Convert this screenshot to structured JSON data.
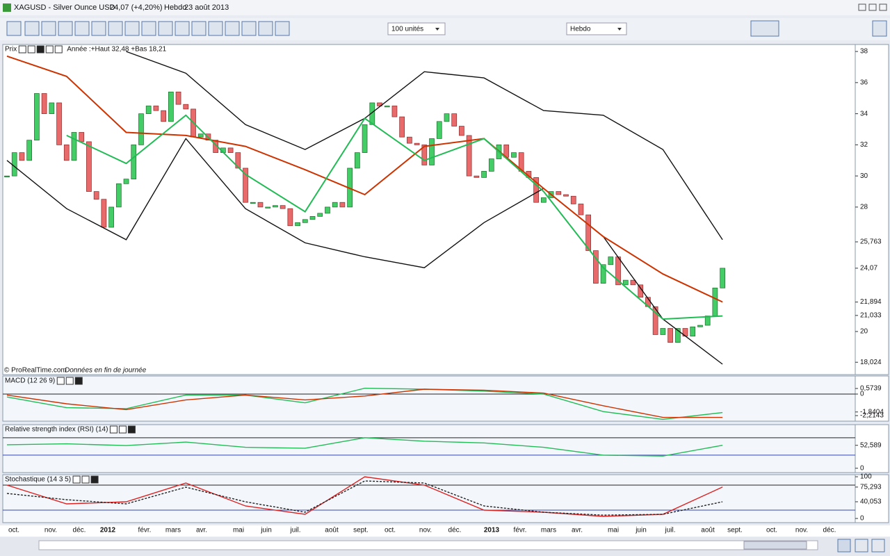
{
  "window": {
    "symbol": "XAGUSD - Silver Ounce USD",
    "quote": "24,07 (+4,20%)",
    "period": "Hebdo",
    "date": "23 août 2013"
  },
  "toolbar": {
    "units": "100 unités",
    "timeframe": "Hebdo"
  },
  "footer": {
    "copyright": "© ProRealTime.com",
    "note": "Données en fin de journée"
  },
  "x_axis": {
    "labels": [
      "oct.",
      "nov.",
      "déc.",
      "2012",
      "févr.",
      "mars",
      "avr.",
      "mai",
      "juin",
      "juil.",
      "août",
      "sept.",
      "oct.",
      "nov.",
      "déc.",
      "2013",
      "févr.",
      "mars",
      "avr.",
      "mai",
      "juin",
      "juil.",
      "août",
      "sept.",
      "oct.",
      "nov.",
      "déc."
    ]
  },
  "chart_data": [
    {
      "type": "candlestick",
      "title": "Prix",
      "subtitle": "Année :+Haut 32,48 +Bas 18,21",
      "closes": [
        30.0,
        31.5,
        31.0,
        32.3,
        35.3,
        34.0,
        34.7,
        32.0,
        31.0,
        32.8,
        32.2,
        29.0,
        28.5,
        26.7,
        28.0,
        29.5,
        29.8,
        32.0,
        34.0,
        34.5,
        34.2,
        33.5,
        35.4,
        34.6,
        34.3,
        32.5,
        32.7,
        32.3,
        31.5,
        31.8,
        31.5,
        30.5,
        28.3,
        28.3,
        28.0,
        28.0,
        28.1,
        27.9,
        26.8,
        27.0,
        27.2,
        27.4,
        27.6,
        28.0,
        28.3,
        28.0,
        30.5,
        31.5,
        33.3,
        34.7,
        34.5,
        34.5,
        33.8,
        32.5,
        32.1,
        32.0,
        30.7,
        32.4,
        33.5,
        34.0,
        33.2,
        32.6,
        30.0,
        29.9,
        30.3,
        31.1,
        32.0,
        31.2,
        31.5,
        30.3,
        29.9,
        28.3,
        28.6,
        29.0,
        28.8,
        28.7,
        28.2,
        27.5,
        25.2,
        23.1,
        24.3,
        24.8,
        23.0,
        23.3,
        23.0,
        22.2,
        21.6,
        19.8,
        20.2,
        19.3,
        20.2,
        19.7,
        20.3,
        20.4,
        21.0,
        22.8,
        24.07
      ],
      "x": [
        0,
        8,
        16,
        24,
        32,
        40,
        48,
        56,
        64,
        72,
        80,
        88,
        96
      ],
      "series": [
        {
          "color": "#111111",
          "values": [
            null,
            null,
            38.0,
            36.6,
            33.3,
            31.7,
            33.7,
            36.7,
            36.3,
            34.2,
            33.9,
            31.7,
            25.9
          ]
        },
        {
          "color": "#111111",
          "values": [
            31.0,
            27.9,
            25.9,
            32.4,
            27.9,
            25.7,
            24.8,
            24.1,
            27.0,
            29.2,
            26.1,
            20.8,
            17.9
          ]
        },
        {
          "color": "#cc3300",
          "values": [
            37.7,
            36.4,
            32.8,
            32.6,
            31.9,
            30.4,
            28.8,
            31.9,
            32.4,
            29.2,
            26.1,
            23.7,
            21.9
          ]
        },
        {
          "color": "#22bb55",
          "values": [
            null,
            32.6,
            30.8,
            33.9,
            30.1,
            27.7,
            33.7,
            31.0,
            32.4,
            29.0,
            24.1,
            20.8,
            21.0
          ]
        }
      ],
      "ylim": [
        17.23,
        38.45
      ],
      "yticks": [
        38,
        36,
        34,
        32,
        30,
        28,
        {
          "value": 25.763,
          "label": "25,763"
        },
        {
          "value": 24.07,
          "label": "24,07"
        },
        {
          "value": 21.894,
          "label": "21,894"
        },
        {
          "value": 21.033,
          "label": "21,033"
        },
        20,
        {
          "value": 18.024,
          "label": "18,024"
        }
      ]
    },
    {
      "type": "line",
      "title": "MACD (12 26 9)",
      "x": [
        0,
        8,
        16,
        24,
        32,
        40,
        48,
        56,
        64,
        72,
        80,
        88,
        96
      ],
      "series": [
        {
          "color": "#22bb55",
          "values": [
            -0.3,
            -1.4,
            -1.5,
            -0.1,
            -0.1,
            -0.9,
            0.6,
            0.5,
            0.3,
            0.0,
            -1.8,
            -2.6,
            -1.9
          ]
        },
        {
          "color": "#cc3300",
          "values": [
            -0.1,
            -1.0,
            -1.6,
            -0.6,
            -0.1,
            -0.6,
            -0.2,
            0.5,
            0.4,
            0.1,
            -1.2,
            -2.4,
            -2.4
          ]
        }
      ],
      "levels": [
        0
      ],
      "ylim": [
        -2.786,
        1.857
      ],
      "yticks": [
        {
          "value": 0.5739,
          "label": "0,5739"
        },
        0,
        {
          "value": -1.8404,
          "label": "-1,8404"
        },
        {
          "value": -2.2143,
          "label": "-2,2143"
        }
      ]
    },
    {
      "type": "line",
      "title": "Relative strength index (RSI) (14)",
      "x": [
        0,
        8,
        16,
        24,
        32,
        40,
        48,
        56,
        64,
        72,
        80,
        88,
        96
      ],
      "series": [
        {
          "color": "#22bb55",
          "values": [
            54,
            56,
            52,
            60,
            48,
            46,
            70,
            62,
            58,
            48,
            30,
            28,
            52.589
          ]
        }
      ],
      "levels": [
        70,
        30
      ],
      "ylim": [
        -10,
        100
      ],
      "yticks": [
        {
          "value": 52.589,
          "label": "52,589"
        },
        0
      ]
    },
    {
      "type": "line",
      "title": "Stochastique (14 3 5)",
      "x": [
        0,
        8,
        16,
        24,
        32,
        40,
        48,
        56,
        64,
        72,
        80,
        88,
        96
      ],
      "series": [
        {
          "color": "#dd2222",
          "values": [
            80,
            35,
            40,
            85,
            30,
            10,
            100,
            80,
            20,
            15,
            5,
            10,
            75.293
          ]
        },
        {
          "color": "#222222",
          "dash": true,
          "values": [
            60,
            45,
            35,
            75,
            40,
            15,
            90,
            85,
            30,
            15,
            8,
            10,
            40.053
          ]
        }
      ],
      "levels": [
        80,
        20
      ],
      "ylim": [
        -10,
        105
      ],
      "yticks": [
        100,
        {
          "value": 75.293,
          "label": "75,293"
        },
        {
          "value": 40.053,
          "label": "40,053"
        },
        0
      ]
    }
  ]
}
